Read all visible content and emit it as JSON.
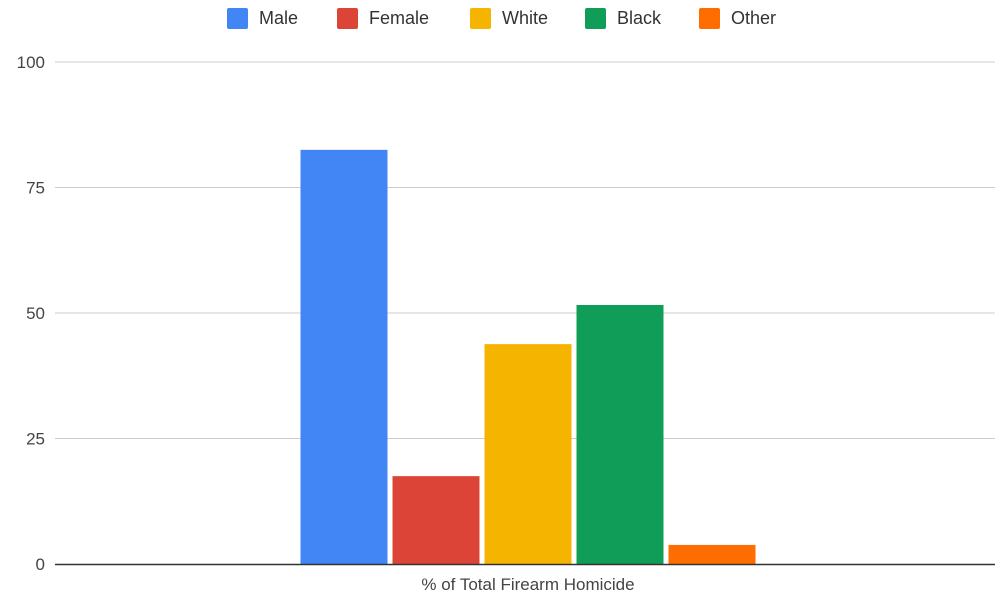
{
  "chart_data": {
    "type": "bar",
    "categories": [
      "% of Total Firearm Homicide"
    ],
    "series": [
      {
        "name": "Male",
        "values": [
          82.5
        ],
        "color": "#4285F4"
      },
      {
        "name": "Female",
        "values": [
          17.5
        ],
        "color": "#DB4437"
      },
      {
        "name": "White",
        "values": [
          43.8
        ],
        "color": "#F4B400"
      },
      {
        "name": "Black",
        "values": [
          51.6
        ],
        "color": "#0F9D58"
      },
      {
        "name": "Other",
        "values": [
          3.8
        ],
        "color": "#FF6D01"
      }
    ],
    "title": "",
    "xlabel": "",
    "ylabel": "",
    "ylim": [
      0,
      100
    ],
    "yticks": [
      "0",
      "25",
      "50",
      "75",
      "100"
    ],
    "grid": true,
    "legend": "top-center"
  }
}
